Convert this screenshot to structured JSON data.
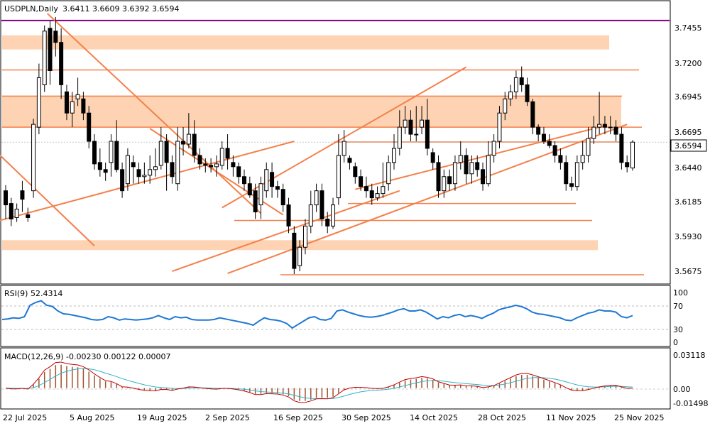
{
  "header": {
    "symbol": "USDPLN,Daily",
    "ohlc": "3.6411 3.6609 3.6392 3.6594"
  },
  "price_axis": {
    "ticks": [
      "3.7455",
      "3.7200",
      "3.6945",
      "3.6695",
      "3.6440",
      "3.6185",
      "3.5930",
      "3.5675"
    ],
    "current_label": "3.6594",
    "current_value": 3.6594
  },
  "rsi_panel": {
    "title": "RSI(9) 52.4314",
    "ticks": [
      "100",
      "70",
      "30",
      "0"
    ]
  },
  "macd_panel": {
    "title": "MACD(12,26,9) -0.00230 0.00122 0.00007",
    "ticks": [
      "0.03118",
      "0.00",
      "-0.01498"
    ]
  },
  "date_axis": {
    "labels": [
      "22 Jul 2025",
      "5 Aug 2025",
      "19 Aug 2025",
      "2 Sep 2025",
      "16 Sep 2025",
      "30 Sep 2025",
      "14 Oct 2025",
      "28 Oct 2025",
      "11 Nov 2025",
      "25 Nov 2025"
    ]
  },
  "colors": {
    "bull_body": "#ffffff",
    "bear_body": "#000000",
    "candle_outline": "#000000",
    "zone": "#fdd3b3",
    "trendline": "#f4804a",
    "purple_line": "#800080",
    "rsi_line": "#1f77d4",
    "macd_signal_line": "#c00000",
    "macd_main_line": "#2db3c9",
    "histogram": "#a0522d"
  },
  "chart_data": {
    "type": "candlestick",
    "symbol": "USDPLN",
    "timeframe": "Daily",
    "last_ohlc": {
      "open": 3.6411,
      "high": 3.6609,
      "low": 3.6392,
      "close": 3.6594
    },
    "price_range": [
      3.56,
      3.758
    ],
    "horizontal_levels": [
      3.7455,
      3.7105,
      3.692,
      3.67,
      3.6595,
      3.616,
      3.604,
      3.5655
    ],
    "zones": [
      [
        3.735,
        3.725
      ],
      [
        3.692,
        3.67
      ],
      [
        3.59,
        3.583
      ]
    ],
    "candles": [
      [
        3.625,
        3.615,
        3.629,
        3.605
      ],
      [
        3.616,
        3.605,
        3.62,
        3.6
      ],
      [
        3.606,
        3.612,
        3.616,
        3.603
      ],
      [
        3.625,
        3.619,
        3.632,
        3.61
      ],
      [
        3.608,
        3.606,
        3.613,
        3.603
      ],
      [
        3.625,
        3.672,
        3.676,
        3.62
      ],
      [
        3.67,
        3.705,
        3.715,
        3.665
      ],
      [
        3.7,
        3.738,
        3.742,
        3.695
      ],
      [
        3.74,
        3.71,
        3.745,
        3.7
      ],
      [
        3.738,
        3.73,
        3.748,
        3.72
      ],
      [
        3.73,
        3.7,
        3.74,
        3.69
      ],
      [
        3.695,
        3.68,
        3.7,
        3.675
      ],
      [
        3.68,
        3.688,
        3.695,
        3.67
      ],
      [
        3.69,
        3.693,
        3.705,
        3.685
      ],
      [
        3.69,
        3.68,
        3.695,
        3.675
      ],
      [
        3.68,
        3.66,
        3.685,
        3.655
      ],
      [
        3.66,
        3.644,
        3.665,
        3.64
      ],
      [
        3.645,
        3.64,
        3.655,
        3.635
      ],
      [
        3.64,
        3.638,
        3.645,
        3.632
      ],
      [
        3.645,
        3.66,
        3.665,
        3.635
      ],
      [
        3.66,
        3.64,
        3.675,
        3.638
      ],
      [
        3.64,
        3.625,
        3.645,
        3.62
      ],
      [
        3.63,
        3.65,
        3.655,
        3.625
      ],
      [
        3.645,
        3.642,
        3.65,
        3.63
      ],
      [
        3.64,
        3.635,
        3.645,
        3.63
      ],
      [
        3.635,
        3.636,
        3.645,
        3.63
      ],
      [
        3.636,
        3.64,
        3.65,
        3.63
      ],
      [
        3.64,
        3.642,
        3.655,
        3.635
      ],
      [
        3.643,
        3.66,
        3.67,
        3.64
      ],
      [
        3.66,
        3.645,
        3.665,
        3.625
      ],
      [
        3.645,
        3.635,
        3.65,
        3.63
      ],
      [
        3.63,
        3.66,
        3.67,
        3.625
      ],
      [
        3.66,
        3.658,
        3.67,
        3.65
      ],
      [
        3.658,
        3.665,
        3.68,
        3.655
      ],
      [
        3.665,
        3.65,
        3.675,
        3.645
      ],
      [
        3.65,
        3.644,
        3.655,
        3.64
      ],
      [
        3.644,
        3.643,
        3.648,
        3.638
      ],
      [
        3.643,
        3.642,
        3.648,
        3.638
      ],
      [
        3.642,
        3.644,
        3.65,
        3.635
      ],
      [
        3.643,
        3.655,
        3.66,
        3.64
      ],
      [
        3.655,
        3.648,
        3.665,
        3.64
      ],
      [
        3.645,
        3.642,
        3.65,
        3.635
      ],
      [
        3.642,
        3.635,
        3.645,
        3.63
      ],
      [
        3.635,
        3.63,
        3.64,
        3.625
      ],
      [
        3.63,
        3.622,
        3.635,
        3.62
      ],
      [
        3.625,
        3.61,
        3.63,
        3.605
      ],
      [
        3.615,
        3.63,
        3.635,
        3.605
      ],
      [
        3.625,
        3.64,
        3.645,
        3.62
      ],
      [
        3.638,
        3.628,
        3.645,
        3.62
      ],
      [
        3.628,
        3.626,
        3.632,
        3.62
      ],
      [
        3.626,
        3.615,
        3.63,
        3.61
      ],
      [
        3.615,
        3.6,
        3.62,
        3.595
      ],
      [
        3.595,
        3.57,
        3.6,
        3.566
      ],
      [
        3.572,
        3.585,
        3.59,
        3.568
      ],
      [
        3.585,
        3.6,
        3.605,
        3.58
      ],
      [
        3.6,
        3.615,
        3.625,
        3.595
      ],
      [
        3.615,
        3.625,
        3.63,
        3.61
      ],
      [
        3.625,
        3.605,
        3.63,
        3.6
      ],
      [
        3.605,
        3.6,
        3.61,
        3.595
      ],
      [
        3.6,
        3.615,
        3.62,
        3.598
      ],
      [
        3.62,
        3.65,
        3.665,
        3.615
      ],
      [
        3.65,
        3.66,
        3.668,
        3.645
      ],
      [
        3.648,
        3.645,
        3.65,
        3.64
      ],
      [
        3.642,
        3.635,
        3.645,
        3.63
      ],
      [
        3.635,
        3.628,
        3.64,
        3.625
      ],
      [
        3.628,
        3.625,
        3.635,
        3.62
      ],
      [
        3.625,
        3.62,
        3.63,
        3.615
      ],
      [
        3.62,
        3.623,
        3.628,
        3.618
      ],
      [
        3.623,
        3.628,
        3.645,
        3.62
      ],
      [
        3.63,
        3.645,
        3.65,
        3.625
      ],
      [
        3.645,
        3.655,
        3.665,
        3.64
      ],
      [
        3.655,
        3.67,
        3.682,
        3.65
      ],
      [
        3.67,
        3.675,
        3.685,
        3.665
      ],
      [
        3.675,
        3.665,
        3.682,
        3.66
      ],
      [
        3.665,
        3.665,
        3.685,
        3.66
      ],
      [
        3.67,
        3.675,
        3.685,
        3.665
      ],
      [
        3.675,
        3.655,
        3.69,
        3.65
      ],
      [
        3.652,
        3.645,
        3.655,
        3.64
      ],
      [
        3.645,
        3.625,
        3.65,
        3.62
      ],
      [
        3.625,
        3.635,
        3.64,
        3.62
      ],
      [
        3.635,
        3.63,
        3.64,
        3.625
      ],
      [
        3.63,
        3.645,
        3.65,
        3.625
      ],
      [
        3.645,
        3.65,
        3.66,
        3.64
      ],
      [
        3.65,
        3.637,
        3.655,
        3.63
      ],
      [
        3.637,
        3.645,
        3.65,
        3.63
      ],
      [
        3.645,
        3.64,
        3.65,
        3.635
      ],
      [
        3.64,
        3.63,
        3.645,
        3.625
      ],
      [
        3.63,
        3.65,
        3.66,
        3.628
      ],
      [
        3.65,
        3.66,
        3.665,
        3.645
      ],
      [
        3.66,
        3.68,
        3.685,
        3.655
      ],
      [
        3.68,
        3.69,
        3.695,
        3.675
      ],
      [
        3.69,
        3.695,
        3.7,
        3.685
      ],
      [
        3.695,
        3.705,
        3.71,
        3.69
      ],
      [
        3.705,
        3.7,
        3.713,
        3.695
      ],
      [
        3.7,
        3.688,
        3.705,
        3.685
      ],
      [
        3.688,
        3.67,
        3.69,
        3.665
      ],
      [
        3.67,
        3.665,
        3.672,
        3.66
      ],
      [
        3.665,
        3.66,
        3.67,
        3.658
      ],
      [
        3.66,
        3.657,
        3.665,
        3.655
      ],
      [
        3.657,
        3.65,
        3.66,
        3.645
      ],
      [
        3.65,
        3.645,
        3.655,
        3.64
      ],
      [
        3.645,
        3.63,
        3.65,
        3.625
      ],
      [
        3.63,
        3.628,
        3.635,
        3.625
      ],
      [
        3.628,
        3.645,
        3.65,
        3.625
      ],
      [
        3.645,
        3.65,
        3.66,
        3.64
      ],
      [
        3.65,
        3.662,
        3.67,
        3.645
      ],
      [
        3.662,
        3.67,
        3.678,
        3.658
      ],
      [
        3.67,
        3.672,
        3.695,
        3.665
      ],
      [
        3.672,
        3.67,
        3.678,
        3.665
      ],
      [
        3.67,
        3.67,
        3.678,
        3.665
      ],
      [
        3.67,
        3.665,
        3.675,
        3.66
      ],
      [
        3.665,
        3.645,
        3.67,
        3.64
      ],
      [
        3.645,
        3.642,
        3.65,
        3.638
      ],
      [
        3.6411,
        3.6594,
        3.6609,
        3.6392
      ]
    ],
    "rsi": {
      "period": 9,
      "last": 52.4314,
      "levels": [
        70,
        30
      ],
      "range": [
        0,
        100
      ],
      "values": [
        45,
        46,
        48,
        47,
        50,
        70,
        75,
        78,
        70,
        68,
        60,
        55,
        54,
        52,
        50,
        48,
        45,
        44,
        45,
        50,
        48,
        44,
        46,
        45,
        44,
        45,
        46,
        48,
        52,
        48,
        45,
        50,
        48,
        49,
        45,
        44,
        44,
        44,
        45,
        48,
        46,
        44,
        42,
        40,
        38,
        35,
        42,
        48,
        45,
        44,
        42,
        38,
        30,
        36,
        42,
        48,
        50,
        45,
        44,
        47,
        60,
        62,
        58,
        55,
        52,
        50,
        49,
        50,
        52,
        55,
        58,
        62,
        64,
        60,
        60,
        62,
        58,
        52,
        46,
        50,
        48,
        52,
        54,
        50,
        52,
        50,
        47,
        52,
        56,
        62,
        65,
        67,
        70,
        68,
        64,
        58,
        55,
        54,
        52,
        50,
        48,
        44,
        43,
        48,
        52,
        56,
        58,
        62,
        60,
        60,
        58,
        50,
        48,
        52
      ]
    },
    "macd": {
      "params": [
        12,
        26,
        9
      ],
      "main": -0.0023,
      "signal": 0.00122,
      "histogram_last": 7e-05,
      "range": [
        -0.01498,
        0.03118
      ]
    }
  }
}
